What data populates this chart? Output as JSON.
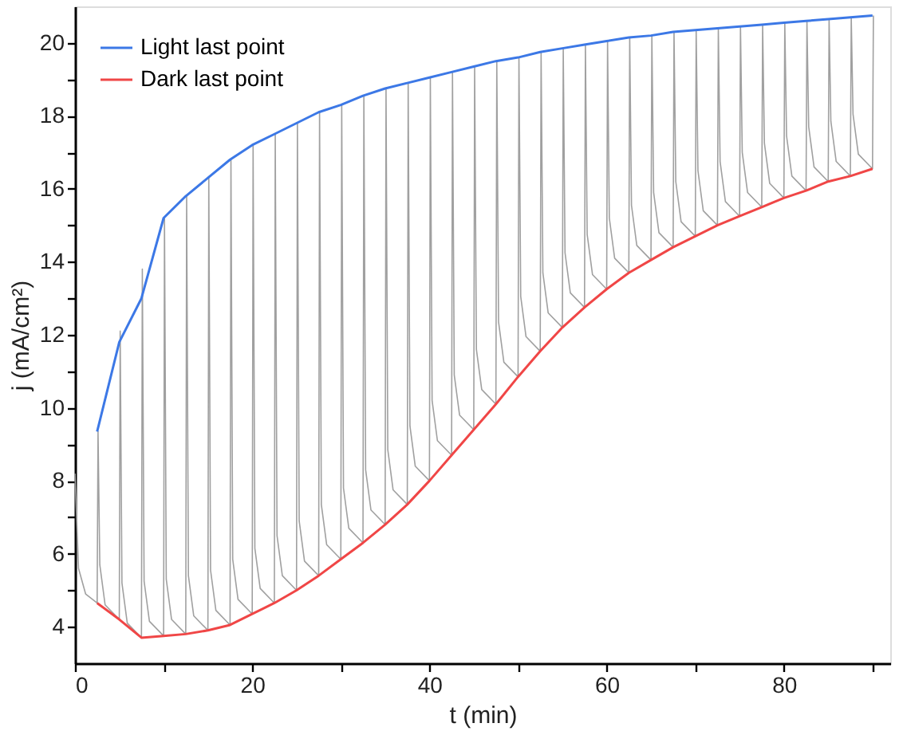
{
  "chart_data": {
    "type": "line",
    "xlabel": "t (min)",
    "ylabel": "j (mA/cm²)",
    "xlim": [
      0,
      92
    ],
    "ylim": [
      3,
      21
    ],
    "xticks": [
      0,
      {
        "value": 10,
        "label": null
      },
      20,
      {
        "value": 30,
        "label": null
      },
      40,
      {
        "value": 50,
        "label": null
      },
      60,
      {
        "value": 70,
        "label": null
      },
      80,
      {
        "value": 90,
        "label": null
      }
    ],
    "yticks": [
      4,
      {
        "value": 5,
        "label": null
      },
      6,
      {
        "value": 7,
        "label": null
      },
      8,
      {
        "value": 9,
        "label": null
      },
      10,
      {
        "value": 11,
        "label": null
      },
      12,
      {
        "value": 13,
        "label": null
      },
      14,
      {
        "value": 15,
        "label": null
      },
      16,
      {
        "value": 17,
        "label": null
      },
      18,
      {
        "value": 19,
        "label": null
      },
      20
    ],
    "grid": false,
    "legend": "top left",
    "marker": "none",
    "line_style": "solid",
    "series": [
      {
        "color": "#a0a0a0",
        "x": [
          0,
          0.4,
          1.2,
          2.5,
          2.6,
          2.8,
          3.4,
          5,
          5.1,
          5.3,
          5.9,
          7.5,
          7.6,
          7.8,
          8.4,
          10,
          10.1,
          10.3,
          10.9,
          12.5,
          12.6,
          12.8,
          13.4,
          15,
          15.1,
          15.3,
          15.9,
          17.5,
          17.6,
          17.8,
          18.4,
          20,
          20.1,
          20.3,
          20.9,
          22.5,
          22.6,
          22.8,
          23.4,
          25,
          25.1,
          25.3,
          25.9,
          27.5,
          27.6,
          27.8,
          28.4,
          30,
          30.1,
          30.3,
          30.9,
          32.5,
          32.6,
          32.8,
          33.4,
          35,
          35.1,
          35.3,
          35.9,
          37.5,
          37.6,
          37.8,
          38.4,
          40,
          40.1,
          40.3,
          40.9,
          42.5,
          42.6,
          42.8,
          43.4,
          45,
          45.1,
          45.3,
          45.9,
          47.5,
          47.6,
          47.8,
          48.4,
          50,
          50.1,
          50.3,
          50.9,
          52.5,
          52.6,
          52.8,
          53.4,
          55,
          55.1,
          55.3,
          55.9,
          57.5,
          57.6,
          57.8,
          58.4,
          60,
          60.1,
          60.3,
          60.9,
          62.5,
          62.6,
          62.8,
          63.4,
          65,
          65.1,
          65.3,
          65.9,
          67.5,
          67.6,
          67.8,
          68.4,
          70,
          70.1,
          70.3,
          70.9,
          72.5,
          72.6,
          72.8,
          73.4,
          75,
          75.1,
          75.3,
          75.9,
          77.5,
          77.6,
          77.8,
          78.4,
          80,
          80.1,
          80.3,
          80.9,
          82.5,
          82.6,
          82.8,
          83.4,
          85,
          85.1,
          85.3,
          85.9,
          87.5,
          87.6,
          87.8,
          88.4,
          90,
          90.1
        ],
        "values": [
          8.2,
          5.6,
          4.9,
          4.65,
          9.35,
          5.7,
          4.6,
          4.2,
          12.1,
          5.2,
          4.1,
          3.7,
          13.8,
          5.25,
          4.15,
          3.75,
          15.2,
          5.3,
          4.2,
          3.8,
          15.8,
          5.4,
          4.3,
          3.9,
          16.3,
          5.55,
          4.45,
          4.05,
          16.8,
          5.85,
          4.75,
          4.35,
          17.2,
          6.15,
          5.05,
          4.65,
          17.5,
          6.5,
          5.4,
          5.0,
          17.8,
          6.9,
          5.8,
          5.4,
          18.1,
          7.35,
          6.25,
          5.85,
          18.3,
          7.8,
          6.7,
          6.3,
          18.55,
          8.3,
          7.2,
          6.8,
          18.75,
          8.85,
          7.75,
          7.35,
          18.9,
          9.5,
          8.4,
          8.0,
          19.05,
          10.2,
          9.1,
          8.7,
          19.2,
          10.9,
          9.8,
          9.4,
          19.35,
          11.6,
          10.5,
          10.1,
          19.5,
          12.35,
          11.25,
          10.85,
          19.6,
          13.05,
          11.95,
          11.55,
          19.75,
          13.7,
          12.6,
          12.2,
          19.85,
          14.25,
          13.15,
          12.75,
          19.95,
          14.75,
          13.65,
          13.25,
          20.05,
          15.2,
          14.1,
          13.7,
          20.15,
          15.55,
          14.45,
          14.05,
          20.2,
          15.9,
          14.8,
          14.4,
          20.3,
          16.2,
          15.1,
          14.7,
          20.35,
          16.5,
          15.4,
          15.0,
          20.4,
          16.75,
          15.65,
          15.25,
          20.45,
          17.0,
          15.9,
          15.5,
          20.5,
          17.25,
          16.15,
          15.75,
          20.55,
          17.45,
          16.35,
          15.95,
          20.6,
          17.7,
          16.6,
          16.2,
          20.65,
          17.85,
          16.75,
          16.35,
          20.7,
          18.05,
          16.95,
          16.55,
          20.75
        ]
      },
      {
        "name": "Light last point",
        "color": "#3c78e6",
        "x": [
          2.5,
          5,
          7.5,
          10,
          12.5,
          15,
          17.5,
          20,
          22.5,
          25,
          27.5,
          30,
          32.5,
          35,
          37.5,
          40,
          42.5,
          45,
          47.5,
          50,
          52.5,
          55,
          57.5,
          60,
          62.5,
          65,
          67.5,
          70,
          72.5,
          75,
          77.5,
          80,
          82.5,
          85,
          87.5,
          90
        ],
        "values": [
          9.35,
          11.8,
          13.0,
          15.2,
          15.8,
          16.3,
          16.8,
          17.2,
          17.5,
          17.8,
          18.1,
          18.3,
          18.55,
          18.75,
          18.9,
          19.05,
          19.2,
          19.35,
          19.5,
          19.6,
          19.75,
          19.85,
          19.95,
          20.05,
          20.15,
          20.2,
          20.3,
          20.35,
          20.4,
          20.45,
          20.5,
          20.55,
          20.6,
          20.65,
          20.7,
          20.75
        ]
      },
      {
        "name": "Dark last point",
        "color": "#f04646",
        "x": [
          2.5,
          5,
          7.5,
          10,
          12.5,
          15,
          17.5,
          20,
          22.5,
          25,
          27.5,
          30,
          32.5,
          35,
          37.5,
          40,
          42.5,
          45,
          47.5,
          50,
          52.5,
          55,
          57.5,
          60,
          62.5,
          65,
          67.5,
          70,
          72.5,
          75,
          77.5,
          80,
          82.5,
          85,
          87.5,
          90
        ],
        "values": [
          4.65,
          4.2,
          3.7,
          3.75,
          3.8,
          3.9,
          4.05,
          4.35,
          4.65,
          5.0,
          5.4,
          5.85,
          6.3,
          6.8,
          7.35,
          8.0,
          8.7,
          9.4,
          10.1,
          10.85,
          11.55,
          12.2,
          12.75,
          13.25,
          13.7,
          14.05,
          14.4,
          14.7,
          15.0,
          15.25,
          15.5,
          15.75,
          15.95,
          16.2,
          16.35,
          16.55
        ]
      }
    ]
  }
}
